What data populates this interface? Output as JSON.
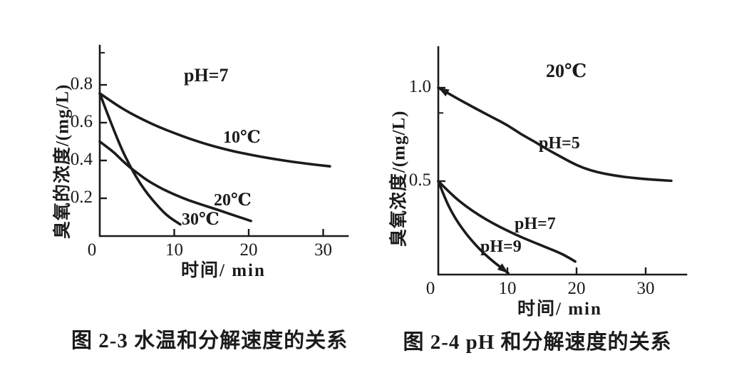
{
  "style": {
    "ink": "#1b1b1b",
    "background": "#ffffff"
  },
  "chart_data": [
    {
      "type": "line",
      "title": "图 2-3  水温和分解速度的关系",
      "xlabel": "时间/ min",
      "ylabel": "臭氧的浓度/(mg/L)",
      "annotation": {
        "text": "pH=7",
        "x": 11.5,
        "y": 0.86
      },
      "xlim": [
        0,
        33.3
      ],
      "ylim": [
        0,
        1.01
      ],
      "grid": false,
      "legend_position": "inline-labels",
      "x_ticks": [
        {
          "v": 0,
          "label": "0"
        },
        {
          "v": 10,
          "label": "10"
        },
        {
          "v": 20,
          "label": "20"
        },
        {
          "v": 30,
          "label": "30"
        }
      ],
      "y_ticks": [
        {
          "v": 0.2,
          "label": "0.2"
        },
        {
          "v": 0.4,
          "label": "0.4"
        },
        {
          "v": 0.6,
          "label": "0.6"
        },
        {
          "v": 0.8,
          "label": "0.8"
        }
      ],
      "minor_y_ticks": [
        0.97
      ],
      "series": [
        {
          "name": "10℃",
          "points": [
            [
              0,
              0.755
            ],
            [
              2,
              0.7
            ],
            [
              4,
              0.652
            ],
            [
              6,
              0.612
            ],
            [
              8,
              0.576
            ],
            [
              10,
              0.545
            ],
            [
              12,
              0.516
            ],
            [
              14,
              0.49
            ],
            [
              16,
              0.468
            ],
            [
              18,
              0.448
            ],
            [
              20,
              0.432
            ],
            [
              22,
              0.417
            ],
            [
              24,
              0.404
            ],
            [
              26,
              0.392
            ],
            [
              28,
              0.382
            ],
            [
              30,
              0.373
            ],
            [
              30.9,
              0.369
            ]
          ]
        },
        {
          "name": "20℃",
          "points": [
            [
              0,
              0.5
            ],
            [
              1,
              0.47
            ],
            [
              2,
              0.44
            ],
            [
              3,
              0.4
            ],
            [
              4,
              0.365
            ],
            [
              5,
              0.335
            ],
            [
              6,
              0.305
            ],
            [
              7,
              0.28
            ],
            [
              8,
              0.258
            ],
            [
              9,
              0.238
            ],
            [
              10,
              0.22
            ],
            [
              12,
              0.188
            ],
            [
              14,
              0.162
            ],
            [
              16,
              0.137
            ],
            [
              18,
              0.11
            ],
            [
              20.3,
              0.08
            ]
          ]
        },
        {
          "name": "30℃",
          "points": [
            [
              0,
              0.755
            ],
            [
              1,
              0.65
            ],
            [
              2,
              0.55
            ],
            [
              3,
              0.455
            ],
            [
              4,
              0.375
            ],
            [
              5,
              0.305
            ],
            [
              6,
              0.245
            ],
            [
              7,
              0.195
            ],
            [
              8,
              0.15
            ],
            [
              9,
              0.11
            ],
            [
              10,
              0.082
            ],
            [
              10.8,
              0.062
            ]
          ]
        }
      ]
    },
    {
      "type": "line",
      "title": "图 2-4  pH 和分解速度的关系",
      "xlabel": "时间/ min",
      "ylabel": "臭氧浓度/(mg/L)",
      "annotation": {
        "text": "20℃",
        "x": 15.7,
        "y": 1.09
      },
      "xlim": [
        0,
        35.8
      ],
      "ylim": [
        0,
        1.22
      ],
      "grid": false,
      "legend_position": "inline-labels",
      "x_ticks": [
        {
          "v": 0,
          "label": "0"
        },
        {
          "v": 10,
          "label": "10"
        },
        {
          "v": 20,
          "label": "20"
        },
        {
          "v": 30,
          "label": "30"
        }
      ],
      "y_ticks": [
        {
          "v": 0.5,
          "label": "0.5"
        },
        {
          "v": 1.0,
          "label": "1.0"
        }
      ],
      "minor_y_ticks": [
        0.865
      ],
      "series": [
        {
          "name": "pH=5",
          "start_arrow": true,
          "points": [
            [
              0,
              1.0
            ],
            [
              2,
              0.958
            ],
            [
              4,
              0.917
            ],
            [
              6,
              0.877
            ],
            [
              8,
              0.838
            ],
            [
              10,
              0.8
            ],
            [
              12,
              0.75
            ],
            [
              14,
              0.71
            ],
            [
              16,
              0.665
            ],
            [
              18,
              0.625
            ],
            [
              20,
              0.585
            ],
            [
              22,
              0.558
            ],
            [
              24,
              0.54
            ],
            [
              26,
              0.527
            ],
            [
              28,
              0.518
            ],
            [
              30,
              0.511
            ],
            [
              32,
              0.506
            ],
            [
              33.7,
              0.502
            ]
          ]
        },
        {
          "name": "pH=7",
          "points": [
            [
              0,
              0.5
            ],
            [
              2,
              0.425
            ],
            [
              4,
              0.365
            ],
            [
              6,
              0.315
            ],
            [
              8,
              0.272
            ],
            [
              10,
              0.235
            ],
            [
              12,
              0.2
            ],
            [
              14,
              0.17
            ],
            [
              16,
              0.14
            ],
            [
              18,
              0.11
            ],
            [
              19.8,
              0.07
            ]
          ]
        },
        {
          "name": "pH=9",
          "end_arrow": true,
          "points": [
            [
              0,
              0.5
            ],
            [
              1,
              0.405
            ],
            [
              2,
              0.33
            ],
            [
              3,
              0.27
            ],
            [
              4,
              0.22
            ],
            [
              5,
              0.175
            ],
            [
              6,
              0.135
            ],
            [
              7,
              0.1
            ],
            [
              8,
              0.068
            ],
            [
              9,
              0.04
            ],
            [
              10.1,
              0.008
            ]
          ]
        }
      ]
    }
  ]
}
